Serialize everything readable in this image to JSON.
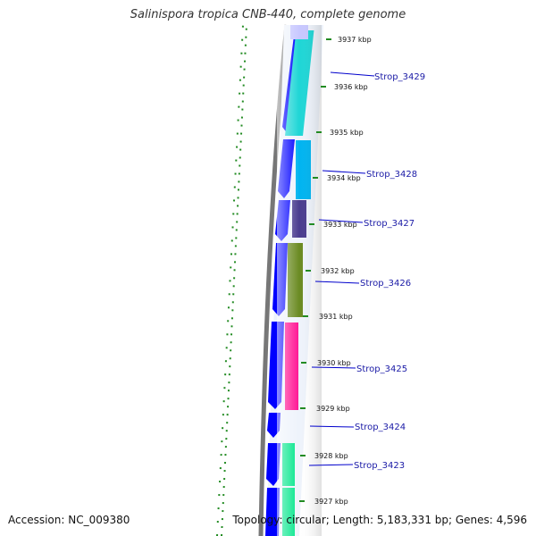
{
  "title": "Salinispora tropica CNB-440, complete genome",
  "footer": {
    "accession": "Accession: NC_009380",
    "summary": "Topology: circular; Length: 5,183,331 bp; Genes: 4,596"
  },
  "ticks": [
    {
      "label": "3937 kbp"
    },
    {
      "label": "3936 kbp"
    },
    {
      "label": "3935 kbp"
    },
    {
      "label": "3934 kbp"
    },
    {
      "label": "3933 kbp"
    },
    {
      "label": "3932 kbp"
    },
    {
      "label": "3931 kbp"
    },
    {
      "label": "3930 kbp"
    },
    {
      "label": "3929 kbp"
    },
    {
      "label": "3928 kbp"
    },
    {
      "label": "3927 kbp"
    }
  ],
  "genes": [
    {
      "label": "Strop_3429",
      "color": "#1fd6d6"
    },
    {
      "label": "Strop_3428",
      "color": "#00b4f0"
    },
    {
      "label": "Strop_3427",
      "color": "#4a3d8f"
    },
    {
      "label": "Strop_3426",
      "color": "#6b8b23"
    },
    {
      "label": "Strop_3425",
      "color": "#ff1493"
    },
    {
      "label": "Strop_3424",
      "color": null
    },
    {
      "label": "Strop_3423",
      "color": "#00e68a"
    }
  ],
  "colors": {
    "cds_strand": "#0000ff",
    "backbone": "#777777",
    "gc_dots": "#228b22",
    "label_line": "#0000cc"
  }
}
